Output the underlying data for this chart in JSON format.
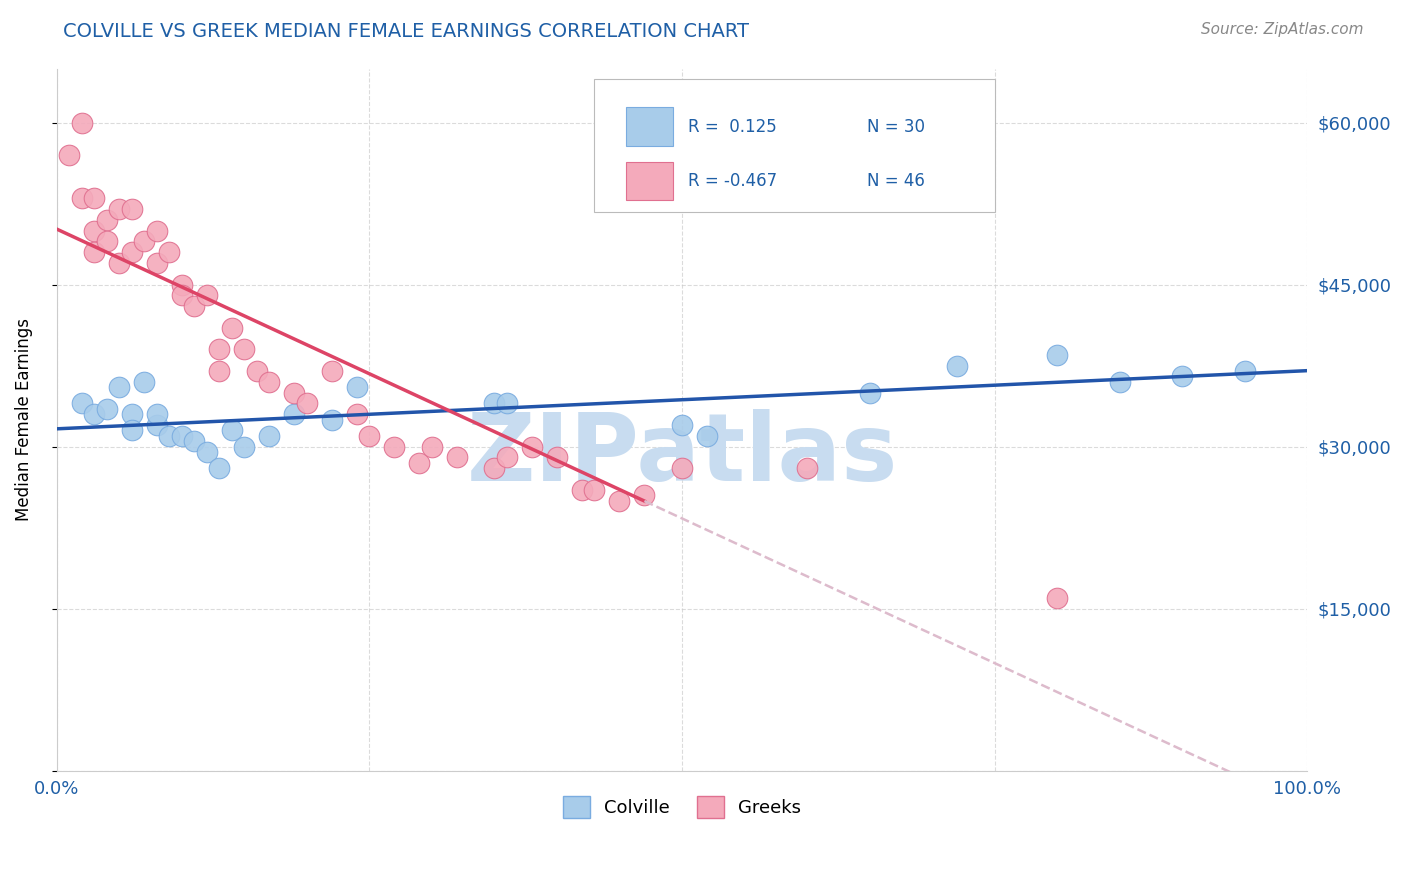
{
  "title": "COLVILLE VS GREEK MEDIAN FEMALE EARNINGS CORRELATION CHART",
  "source_text": "Source: ZipAtlas.com",
  "ylabel": "Median Female Earnings",
  "xlim": [
    0.0,
    1.0
  ],
  "ylim": [
    0,
    65000
  ],
  "yticks": [
    0,
    15000,
    30000,
    45000,
    60000
  ],
  "ytick_labels": [
    "",
    "$15,000",
    "$30,000",
    "$45,000",
    "$60,000"
  ],
  "xtick_labels": [
    "0.0%",
    "100.0%"
  ],
  "colville_color": "#A8CCEA",
  "colville_edge": "#7AACE0",
  "greek_color": "#F4AABB",
  "greek_edge": "#E07090",
  "blue_line_color": "#2255AA",
  "pink_line_color": "#DD4466",
  "dashed_line_color": "#DDBBCC",
  "legend_R1": "R =  0.125",
  "legend_N1": "N = 30",
  "legend_R2": "R = -0.467",
  "legend_N2": "N = 46",
  "colville_x": [
    0.02,
    0.03,
    0.04,
    0.05,
    0.06,
    0.06,
    0.07,
    0.08,
    0.08,
    0.09,
    0.1,
    0.11,
    0.12,
    0.13,
    0.14,
    0.15,
    0.17,
    0.19,
    0.22,
    0.24,
    0.35,
    0.36,
    0.5,
    0.52,
    0.65,
    0.72,
    0.8,
    0.85,
    0.9,
    0.95
  ],
  "colville_y": [
    34000,
    33000,
    33500,
    35500,
    33000,
    31500,
    36000,
    32000,
    33000,
    31000,
    31000,
    30500,
    29500,
    28000,
    31500,
    30000,
    31000,
    33000,
    32500,
    35500,
    34000,
    34000,
    32000,
    31000,
    35000,
    37500,
    38500,
    36000,
    36500,
    37000
  ],
  "greek_x": [
    0.01,
    0.02,
    0.02,
    0.03,
    0.03,
    0.03,
    0.04,
    0.04,
    0.05,
    0.05,
    0.06,
    0.06,
    0.07,
    0.08,
    0.08,
    0.09,
    0.1,
    0.1,
    0.11,
    0.12,
    0.13,
    0.13,
    0.14,
    0.15,
    0.16,
    0.17,
    0.19,
    0.2,
    0.22,
    0.24,
    0.25,
    0.27,
    0.29,
    0.3,
    0.32,
    0.35,
    0.36,
    0.38,
    0.4,
    0.42,
    0.43,
    0.45,
    0.47,
    0.5,
    0.6,
    0.8
  ],
  "greek_y": [
    57000,
    60000,
    53000,
    50000,
    48000,
    53000,
    51000,
    49000,
    52000,
    47000,
    48000,
    52000,
    49000,
    50000,
    47000,
    48000,
    45000,
    44000,
    43000,
    44000,
    39000,
    37000,
    41000,
    39000,
    37000,
    36000,
    35000,
    34000,
    37000,
    33000,
    31000,
    30000,
    28500,
    30000,
    29000,
    28000,
    29000,
    30000,
    29000,
    26000,
    26000,
    25000,
    25500,
    28000,
    28000,
    16000
  ],
  "watermark": "ZIPatlas",
  "watermark_color": "#C8DCF0",
  "background_color": "#FFFFFF",
  "grid_color": "#CCCCCC",
  "pink_line_end_x": 0.47,
  "blue_line_color_text": "#1F5FA6"
}
